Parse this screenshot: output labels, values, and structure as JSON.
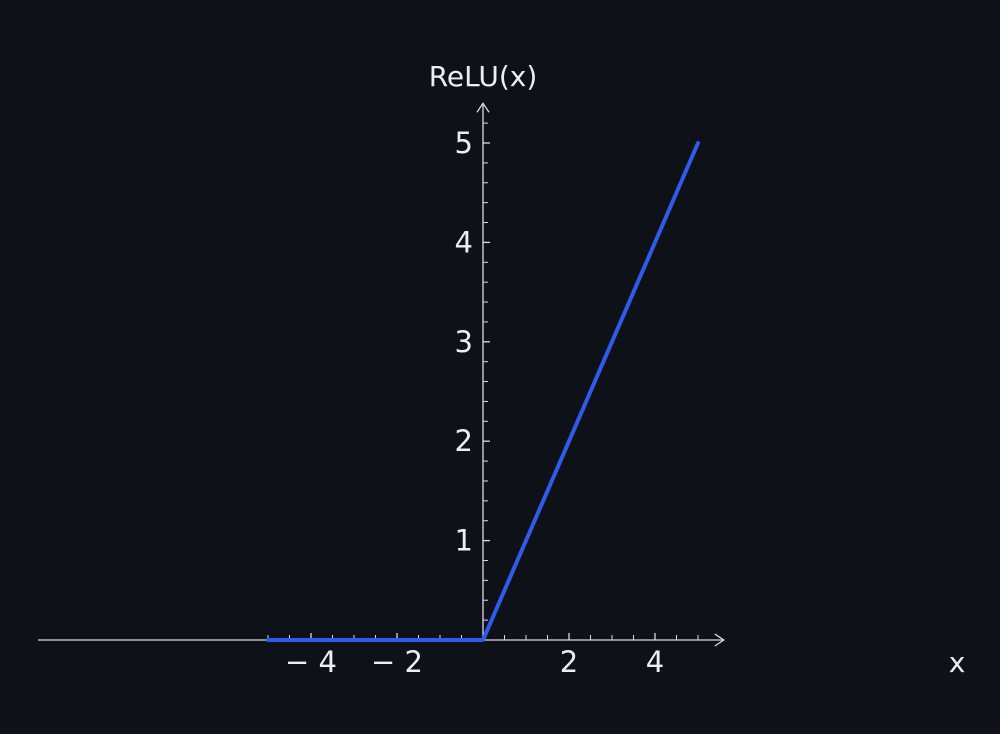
{
  "chart_data": {
    "type": "line",
    "title": "",
    "xlabel": "x",
    "ylabel": "ReLU(x)",
    "xlim": [
      -5.1,
      5.6
    ],
    "ylim": [
      0,
      5.4
    ],
    "x_major_ticks": [
      -4,
      -2,
      2,
      4
    ],
    "x_tick_labels": [
      "− 4",
      "− 2",
      "2",
      "4"
    ],
    "x_minor_step": 0.5,
    "y_major_ticks": [
      1,
      2,
      3,
      4,
      5
    ],
    "y_tick_labels": [
      "1",
      "2",
      "3",
      "4",
      "5"
    ],
    "y_minor_step": 0.2,
    "grid": false,
    "legend": "none",
    "series": [
      {
        "color": "#2e5bea",
        "x": [
          -5,
          0,
          5
        ],
        "y": [
          0,
          0,
          5
        ]
      }
    ]
  }
}
